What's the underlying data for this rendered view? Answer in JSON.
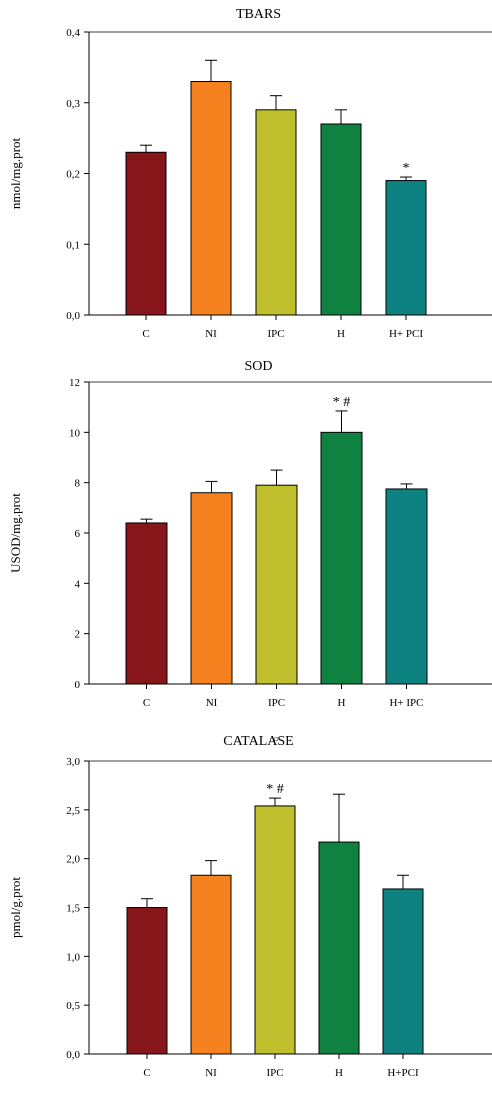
{
  "colors": [
    "#86161a",
    "#f5821f",
    "#c0c02e",
    "#0f8241",
    "#0e8281"
  ],
  "chart_data": [
    {
      "type": "bar",
      "title": "TBARS",
      "ylabel": "nmol/mg.prot",
      "categories": [
        "C",
        "NI",
        "IPC",
        "H",
        "H+ PCI"
      ],
      "values": [
        0.23,
        0.33,
        0.29,
        0.27,
        0.19
      ],
      "errors": [
        0.01,
        0.03,
        0.02,
        0.02,
        0.005
      ],
      "annotations": [
        "",
        "",
        "",
        "",
        "*"
      ],
      "ylim": [
        0,
        0.4
      ],
      "yticks": [
        0,
        0.1,
        0.2,
        0.3,
        0.4
      ],
      "ytick_labels": [
        "0,0",
        "0,1",
        "0,2",
        "0,3",
        "0,4"
      ],
      "grid": false
    },
    {
      "type": "bar",
      "title": "SOD",
      "ylabel": "USOD/mg.prot",
      "categories": [
        "C",
        "NI",
        "IPC",
        "H",
        "H+ IPC"
      ],
      "values": [
        6.4,
        7.6,
        7.9,
        10.0,
        7.75
      ],
      "errors": [
        0.15,
        0.45,
        0.6,
        0.85,
        0.2
      ],
      "annotations": [
        "",
        "",
        "",
        "* #",
        ""
      ],
      "ylim": [
        0,
        12
      ],
      "yticks": [
        0,
        2,
        4,
        6,
        8,
        10,
        12
      ],
      "ytick_labels": [
        "0",
        "2",
        "4",
        "6",
        "8",
        "10",
        "12"
      ],
      "grid": false
    },
    {
      "type": "bar",
      "title": "CATALASE",
      "ylabel": "pmol/g.prot",
      "categories": [
        "C",
        "NI",
        "IPC",
        "H",
        "H+PCI"
      ],
      "values": [
        1.5,
        1.83,
        2.54,
        2.17,
        1.69
      ],
      "errors": [
        0.09,
        0.15,
        0.08,
        0.49,
        0.14
      ],
      "annotations": [
        "",
        "",
        "* #",
        "",
        ""
      ],
      "ylim": [
        0,
        3.0
      ],
      "yticks": [
        0,
        0.5,
        1.0,
        1.5,
        2.0,
        2.5,
        3.0
      ],
      "ytick_labels": [
        "0,0",
        "0,5",
        "1,0",
        "1,5",
        "2,0",
        "2,5",
        "3,0"
      ],
      "grid": false
    }
  ]
}
